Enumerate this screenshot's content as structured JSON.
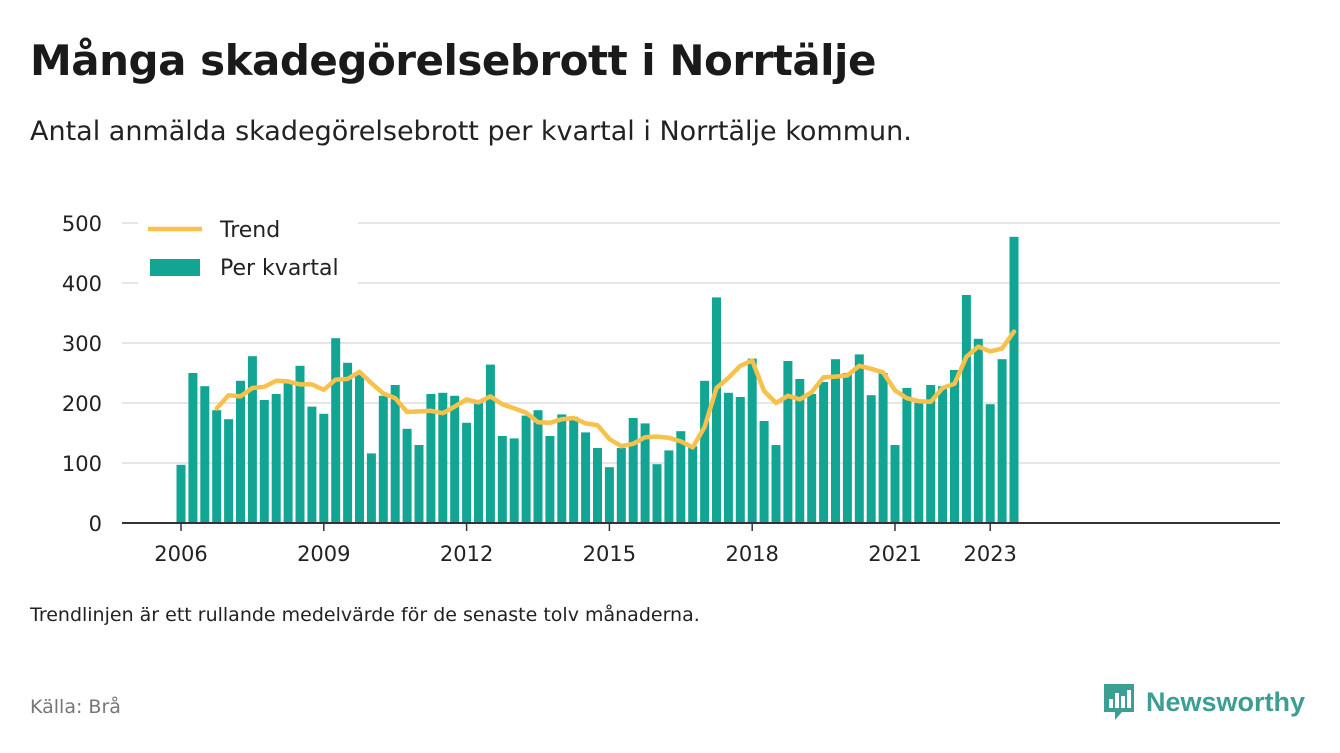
{
  "title": "Många skadegörelsebrott i Norrtälje",
  "subtitle": "Antal anmälda skadegörelsebrott per kvartal i Norrtälje kommun.",
  "note": "Trendlinjen är ett rullande medelvärde för de senaste tolv månaderna.",
  "source": "Källa: Brå",
  "brand": {
    "name": "Newsworthy",
    "logo_icon": "newsworthy-bar-chart-icon"
  },
  "colors": {
    "bars": "#12a594",
    "trend": "#f7c14b",
    "grid": "#dddddd",
    "axis": "#333333",
    "brand": "#3d9e94"
  },
  "chart_data": {
    "type": "bar",
    "x_unit": "quarter",
    "x_start": "2006 Q1",
    "x_end": "2023 Q3",
    "xticks": [
      "2006",
      "2009",
      "2012",
      "2015",
      "2018",
      "2021",
      "2023"
    ],
    "yticks": [
      0,
      100,
      200,
      300,
      400,
      500
    ],
    "ylim": [
      0,
      500
    ],
    "grid": true,
    "legend_position": "top-left",
    "legend": [
      "Trend",
      "Per kvartal"
    ],
    "series": [
      {
        "name": "Per kvartal",
        "type": "bar",
        "values": [
          97,
          250,
          228,
          188,
          173,
          237,
          278,
          205,
          215,
          233,
          262,
          194,
          182,
          308,
          267,
          249,
          116,
          212,
          230,
          157,
          130,
          215,
          217,
          212,
          167,
          200,
          264,
          145,
          141,
          179,
          188,
          145,
          181,
          177,
          151,
          125,
          93,
          125,
          175,
          166,
          98,
          121,
          153,
          128,
          237,
          376,
          217,
          210,
          274,
          170,
          130,
          270,
          240,
          215,
          235,
          273,
          250,
          281,
          213,
          250,
          130,
          225,
          200,
          230,
          228,
          255,
          380,
          307,
          198,
          273,
          477
        ]
      },
      {
        "name": "Trend",
        "type": "line",
        "values": [
          null,
          null,
          null,
          191,
          213,
          211,
          225,
          227,
          237,
          236,
          231,
          231,
          222,
          239,
          240,
          252,
          233,
          216,
          208,
          185,
          186,
          187,
          183,
          194,
          206,
          201,
          211,
          198,
          191,
          184,
          168,
          167,
          173,
          175,
          166,
          163,
          140,
          128,
          132,
          143,
          144,
          142,
          136,
          126,
          160,
          225,
          242,
          262,
          271,
          220,
          200,
          212,
          206,
          218,
          243,
          244,
          246,
          262,
          257,
          251,
          221,
          208,
          203,
          202,
          225,
          232,
          277,
          294,
          286,
          291,
          319
        ]
      }
    ]
  }
}
